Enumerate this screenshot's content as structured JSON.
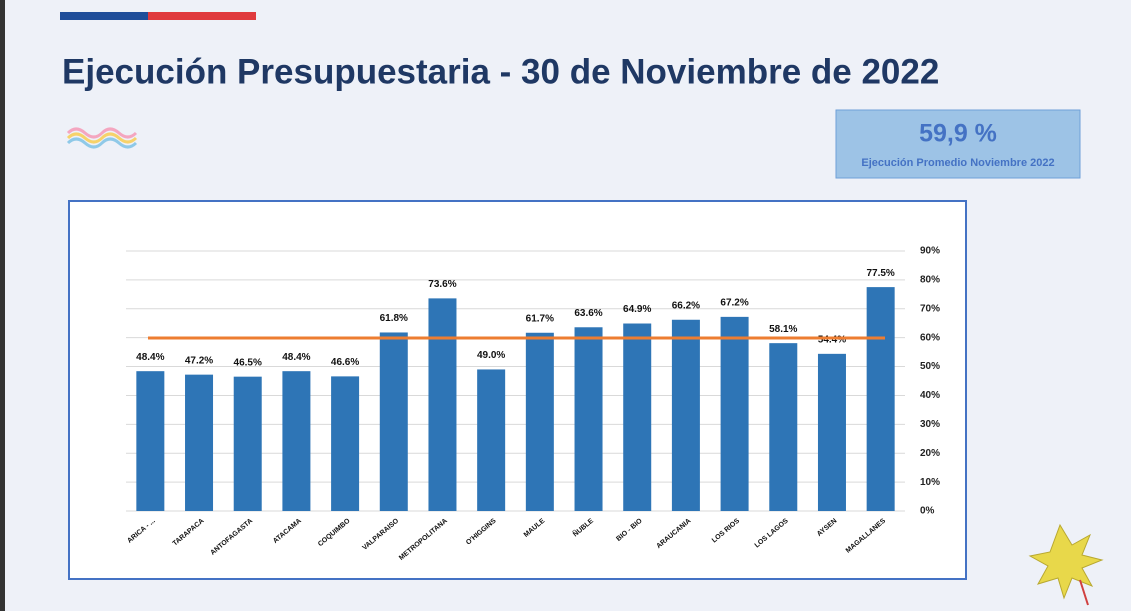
{
  "chart_data": {
    "type": "bar",
    "title": "Ejecución Presupuestaria - 30 de Noviembre de 2022",
    "average": {
      "value": 59.9,
      "label": "59,9 %"
    },
    "average_caption": "Ejecución Promedio Noviembre 2022",
    "average_color": "#ed7d31",
    "categories": [
      "ARICA - ...",
      "TARAPACA",
      "ANTOFAGASTA",
      "ATACAMA",
      "COQUIMBO",
      "VALPARAISO",
      "METROPOLITANA",
      "O'HIGGINS",
      "MAULE",
      "ÑUBLE",
      "BIO - BIO",
      "ARAUCANIA",
      "LOS RIOS",
      "LOS LAGOS",
      "AYSEN",
      "MAGALLANES"
    ],
    "values": [
      48.4,
      47.2,
      46.5,
      48.4,
      46.6,
      61.8,
      73.6,
      49.0,
      61.7,
      63.6,
      64.9,
      66.2,
      67.2,
      58.1,
      54.4,
      77.5
    ],
    "value_labels": [
      "48.4%",
      "47.2%",
      "46.5%",
      "48.4%",
      "46.6%",
      "61.8%",
      "73.6%",
      "49.0%",
      "61.7%",
      "63.6%",
      "64.9%",
      "66.2%",
      "67.2%",
      "58.1%",
      "54.4%",
      "77.5%"
    ],
    "color": "#2e75b6",
    "ylim": [
      0,
      90
    ],
    "yticks": [
      {
        "value": 0,
        "label": "0%"
      },
      {
        "value": 10,
        "label": "10%"
      },
      {
        "value": 20,
        "label": "20%"
      },
      {
        "value": 30,
        "label": "30%"
      },
      {
        "value": 40,
        "label": "40%"
      },
      {
        "value": 50,
        "label": "50%"
      },
      {
        "value": 60,
        "label": "60%"
      },
      {
        "value": 70,
        "label": "70%"
      },
      {
        "value": 80,
        "label": "80%"
      },
      {
        "value": 90,
        "label": "90%"
      }
    ],
    "grid": true
  }
}
